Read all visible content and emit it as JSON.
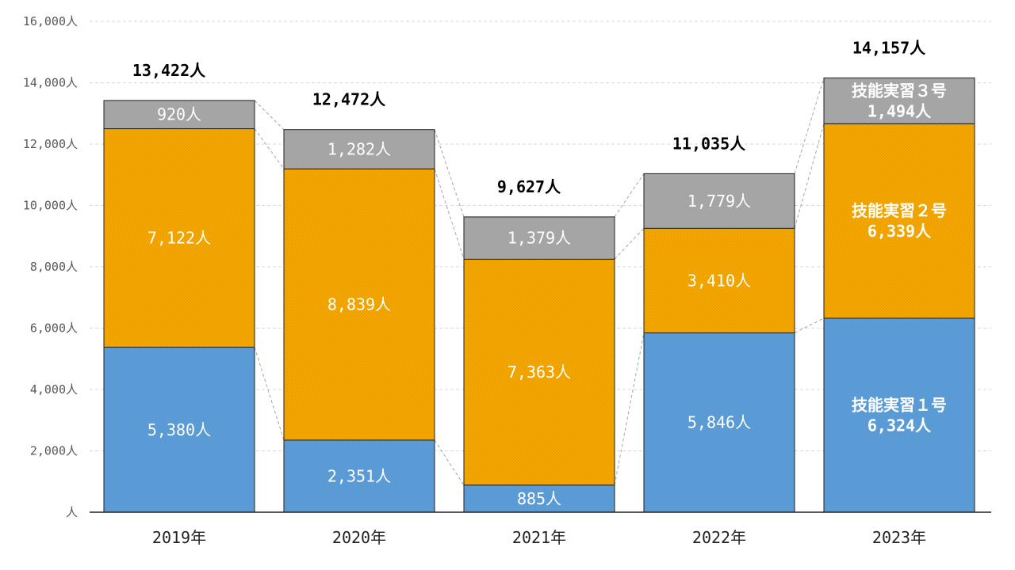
{
  "chart_data": {
    "type": "bar",
    "stacked": true,
    "categories": [
      "2019年",
      "2020年",
      "2021年",
      "2022年",
      "2023年"
    ],
    "series": [
      {
        "name": "技能実習１号",
        "values": [
          5380,
          2351,
          885,
          5846,
          6324
        ],
        "labels": [
          "5,380人",
          "2,351人",
          "885人",
          "5,846人",
          "6,324人"
        ],
        "color": "#5B9BD5"
      },
      {
        "name": "技能実習２号",
        "values": [
          7122,
          8839,
          7363,
          3410,
          6339
        ],
        "labels": [
          "7,122人",
          "8,839人",
          "7,363人",
          "3,410人",
          "6,339人"
        ],
        "color": "#F5A800"
      },
      {
        "name": "技能実習３号",
        "values": [
          920,
          1282,
          1379,
          1779,
          1494
        ],
        "labels": [
          "920人",
          "1,282人",
          "1,379人",
          "1,779人",
          "1,494人"
        ],
        "color": "#A5A5A5"
      }
    ],
    "totals": [
      13422,
      12472,
      9627,
      11035,
      14157
    ],
    "total_labels": [
      "13,422人",
      "12,472人",
      "9,627人",
      "11,035人",
      "14,157人"
    ],
    "ylim": [
      0,
      16000
    ],
    "yticks": [
      0,
      2000,
      4000,
      6000,
      8000,
      10000,
      12000,
      14000,
      16000
    ],
    "ytick_labels": [
      "人",
      "2,000人",
      "4,000人",
      "6,000人",
      "8,000人",
      "10,000人",
      "12,000人",
      "14,000人",
      "16,000人"
    ],
    "series_name_shown_on_category_index": 4,
    "grid": true,
    "title": "",
    "xlabel": "",
    "ylabel": ""
  }
}
